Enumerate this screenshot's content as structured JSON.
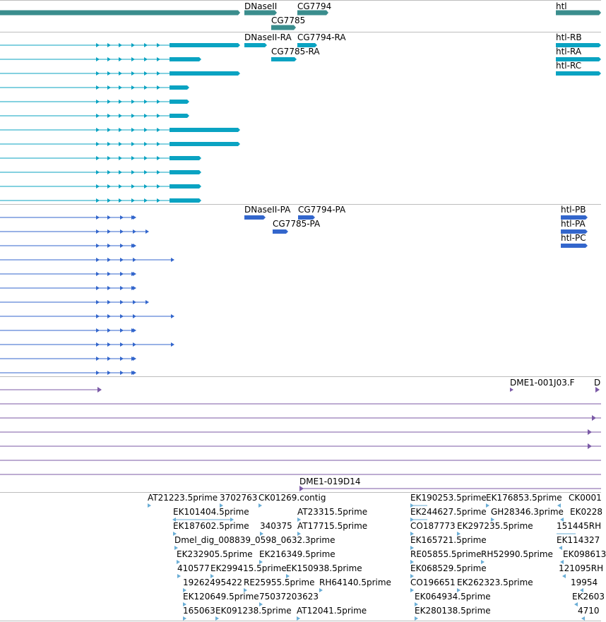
{
  "colors": {
    "gene": "#3a8d8d",
    "transcript": "#0aa3c2",
    "protein": "#3366cc",
    "clone": "#7b5aa6",
    "est": "#6aaed6",
    "separator": "#bdbdbd"
  },
  "gene_labels": [
    "DNaseII",
    "CG7794",
    "CG7785",
    "htl"
  ],
  "transcript_labels": [
    "DNaseII-RA",
    "CG7794-RA",
    "CG7785-RA",
    "htl-RB",
    "htl-RA",
    "htl-RC"
  ],
  "protein_labels": [
    "DNaseII-PA",
    "CG7794-PA",
    "CG7785-PA",
    "htl-PB",
    "htl-PA",
    "htl-PC"
  ],
  "clone_labels": [
    "DME1-001J03.F",
    "D",
    "DME1-019D14"
  ],
  "est_labels": [
    "AT21223.5prime",
    "3702763",
    "CK01269.contig",
    "EK101404.5prime",
    "AT23315.5prime",
    "EK187602.5prime",
    "340375",
    "AT17715.5prime",
    "Dmel_dig_008839_0598_0632.3prime",
    "EK232905.5prime",
    "EK216349.5prime",
    "410577",
    "EK299415.5prime",
    "EK150938.5prime",
    "19262495422",
    "RE25955.5prime",
    "RH64140.5prime",
    "EK120649.5prime",
    "75037203623",
    "165063",
    "EK091238.5prime",
    "AT12041.5prime",
    "EK190253.5prime",
    "EK176853.5prime",
    "CK0001",
    "EK244627.5prime",
    "GH28346.3prime",
    "EK0228",
    "CO187773",
    "EK297235.5prime",
    "151445RH",
    "EK165721.5prime",
    "EK114327",
    "RE05855.5prime",
    "RH52990.5prime",
    "EK098613",
    "EK068529.5prime",
    "121095RH",
    "CO196651",
    "EK262323.5prime",
    "19954",
    "EK064934.5prime",
    "EK2603",
    "EK280138.5prime",
    "4710"
  ]
}
